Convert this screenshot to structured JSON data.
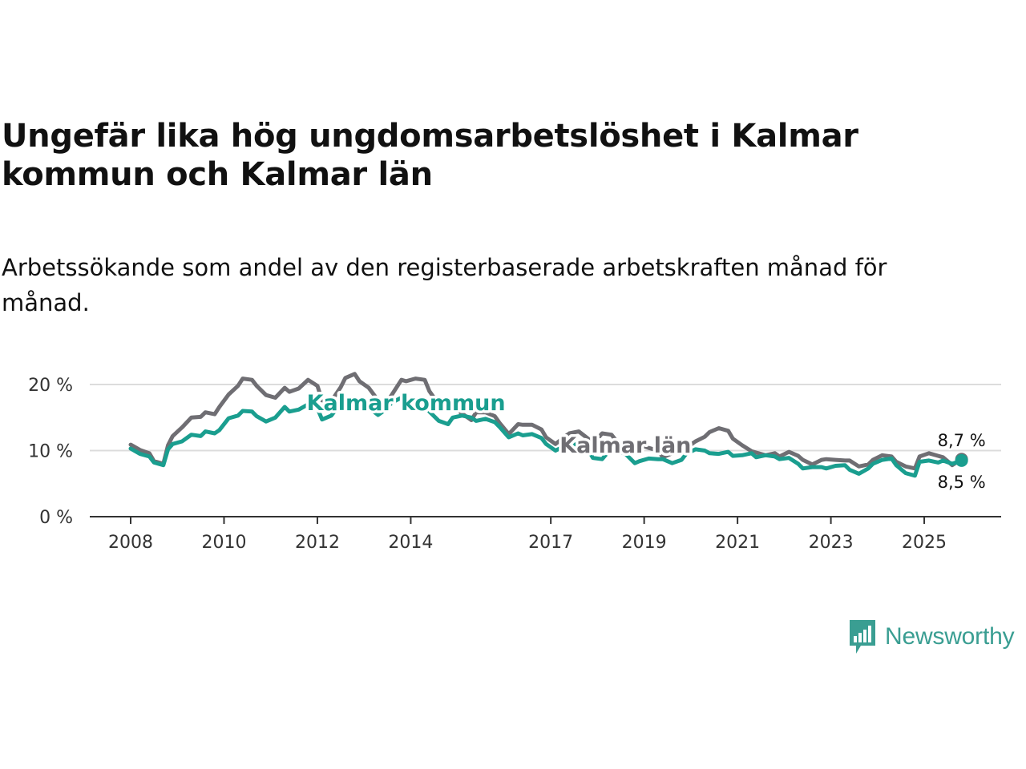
{
  "title": "Ungefär lika hög ungdomsarbetslöshet i Kalmar kommun och Kalmar län",
  "subtitle": "Arbetssökande som andel av den registerbaserade arbetskraften månad för månad.",
  "logo_text": "Newsworthy",
  "chart_data": {
    "type": "line",
    "y_tick_labels": [
      "0 %",
      "10 %",
      "20 %"
    ],
    "y_ticks": [
      0,
      10,
      20
    ],
    "ylim": [
      0,
      22
    ],
    "x_tick_labels": [
      "2008",
      "2010",
      "2012",
      "2014",
      "2017",
      "2019",
      "2021",
      "2023",
      "2025"
    ],
    "x_ticks": [
      2008,
      2010,
      2012,
      2014,
      2017,
      2019,
      2021,
      2023,
      2025
    ],
    "xlim": [
      2007.2,
      2026.5
    ],
    "grid": true,
    "colors": {
      "lan": "#6f6e73",
      "kommun": "#1a9e8f"
    },
    "series": [
      {
        "name": "Kalmar län",
        "key": "lan",
        "label": "Kalmar län",
        "label_position": [
          2018.6,
          10.8
        ],
        "end_label": "8,7 %",
        "points": [
          [
            2008.0,
            10.9
          ],
          [
            2008.2,
            10.1
          ],
          [
            2008.4,
            9.6
          ],
          [
            2008.5,
            8.4
          ],
          [
            2008.7,
            8.0
          ],
          [
            2008.8,
            10.8
          ],
          [
            2008.9,
            12.2
          ],
          [
            2009.1,
            13.5
          ],
          [
            2009.3,
            15.0
          ],
          [
            2009.5,
            15.1
          ],
          [
            2009.6,
            15.8
          ],
          [
            2009.8,
            15.5
          ],
          [
            2009.9,
            16.6
          ],
          [
            2010.1,
            18.5
          ],
          [
            2010.3,
            19.8
          ],
          [
            2010.4,
            20.9
          ],
          [
            2010.6,
            20.7
          ],
          [
            2010.7,
            19.8
          ],
          [
            2010.9,
            18.4
          ],
          [
            2011.1,
            18.0
          ],
          [
            2011.3,
            19.5
          ],
          [
            2011.4,
            18.9
          ],
          [
            2011.6,
            19.4
          ],
          [
            2011.8,
            20.7
          ],
          [
            2012.0,
            19.8
          ],
          [
            2012.1,
            17.6
          ],
          [
            2012.3,
            17.5
          ],
          [
            2012.5,
            19.6
          ],
          [
            2012.6,
            21.0
          ],
          [
            2012.8,
            21.6
          ],
          [
            2012.9,
            20.5
          ],
          [
            2013.1,
            19.5
          ],
          [
            2013.3,
            17.6
          ],
          [
            2013.4,
            16.5
          ],
          [
            2013.6,
            18.5
          ],
          [
            2013.8,
            20.7
          ],
          [
            2013.9,
            20.5
          ],
          [
            2014.1,
            20.9
          ],
          [
            2014.3,
            20.7
          ],
          [
            2014.4,
            19.0
          ],
          [
            2014.6,
            17.0
          ],
          [
            2014.8,
            17.8
          ],
          [
            2014.9,
            16.7
          ],
          [
            2015.1,
            15.6
          ],
          [
            2015.3,
            14.6
          ],
          [
            2015.4,
            15.8
          ],
          [
            2015.6,
            15.8
          ],
          [
            2015.8,
            15.2
          ],
          [
            2015.9,
            14.2
          ],
          [
            2016.1,
            12.5
          ],
          [
            2016.3,
            14.0
          ],
          [
            2016.4,
            13.9
          ],
          [
            2016.6,
            13.9
          ],
          [
            2016.8,
            13.2
          ],
          [
            2016.9,
            12.0
          ],
          [
            2017.1,
            11.0
          ],
          [
            2017.3,
            12.1
          ],
          [
            2017.4,
            12.6
          ],
          [
            2017.6,
            12.9
          ],
          [
            2017.8,
            11.8
          ],
          [
            2017.9,
            11.0
          ],
          [
            2018.1,
            12.6
          ],
          [
            2018.3,
            12.4
          ],
          [
            2018.4,
            11.5
          ],
          [
            2018.6,
            10.6
          ],
          [
            2018.8,
            10.3
          ],
          [
            2018.9,
            10.9
          ],
          [
            2019.1,
            10.4
          ],
          [
            2019.3,
            10.0
          ],
          [
            2019.4,
            9.0
          ],
          [
            2019.6,
            9.6
          ],
          [
            2019.8,
            9.9
          ],
          [
            2019.9,
            10.4
          ],
          [
            2020.1,
            11.4
          ],
          [
            2020.3,
            12.1
          ],
          [
            2020.4,
            12.8
          ],
          [
            2020.6,
            13.4
          ],
          [
            2020.8,
            13.0
          ],
          [
            2020.9,
            11.8
          ],
          [
            2021.1,
            10.8
          ],
          [
            2021.3,
            9.9
          ],
          [
            2021.4,
            9.7
          ],
          [
            2021.6,
            9.3
          ],
          [
            2021.8,
            9.6
          ],
          [
            2021.9,
            9.1
          ],
          [
            2022.1,
            9.8
          ],
          [
            2022.3,
            9.2
          ],
          [
            2022.4,
            8.6
          ],
          [
            2022.6,
            7.9
          ],
          [
            2022.8,
            8.6
          ],
          [
            2022.9,
            8.7
          ],
          [
            2023.1,
            8.6
          ],
          [
            2023.3,
            8.5
          ],
          [
            2023.4,
            8.5
          ],
          [
            2023.6,
            7.6
          ],
          [
            2023.8,
            7.9
          ],
          [
            2023.9,
            8.6
          ],
          [
            2024.1,
            9.3
          ],
          [
            2024.3,
            9.1
          ],
          [
            2024.4,
            8.3
          ],
          [
            2024.6,
            7.6
          ],
          [
            2024.8,
            7.3
          ],
          [
            2024.9,
            9.1
          ],
          [
            2025.1,
            9.6
          ],
          [
            2025.3,
            9.2
          ],
          [
            2025.4,
            9.0
          ],
          [
            2025.6,
            7.8
          ],
          [
            2025.8,
            8.7
          ]
        ]
      },
      {
        "name": "Kalmar kommun",
        "key": "kommun",
        "label": "Kalmar kommun",
        "label_position": [
          2013.9,
          17.2
        ],
        "end_label": "8,5 %",
        "points": [
          [
            2008.0,
            10.3
          ],
          [
            2008.2,
            9.5
          ],
          [
            2008.4,
            9.1
          ],
          [
            2008.5,
            8.2
          ],
          [
            2008.7,
            7.8
          ],
          [
            2008.8,
            10.2
          ],
          [
            2008.9,
            11.0
          ],
          [
            2009.1,
            11.4
          ],
          [
            2009.3,
            12.4
          ],
          [
            2009.5,
            12.2
          ],
          [
            2009.6,
            12.9
          ],
          [
            2009.8,
            12.6
          ],
          [
            2009.9,
            13.1
          ],
          [
            2010.1,
            14.9
          ],
          [
            2010.3,
            15.3
          ],
          [
            2010.4,
            16.0
          ],
          [
            2010.6,
            15.9
          ],
          [
            2010.7,
            15.2
          ],
          [
            2010.9,
            14.4
          ],
          [
            2011.1,
            15.0
          ],
          [
            2011.3,
            16.6
          ],
          [
            2011.4,
            15.9
          ],
          [
            2011.6,
            16.2
          ],
          [
            2011.8,
            17.0
          ],
          [
            2012.0,
            16.4
          ],
          [
            2012.1,
            14.7
          ],
          [
            2012.3,
            15.3
          ],
          [
            2012.5,
            17.2
          ],
          [
            2012.6,
            17.8
          ],
          [
            2012.8,
            17.9
          ],
          [
            2012.9,
            17.0
          ],
          [
            2013.1,
            16.5
          ],
          [
            2013.3,
            15.4
          ],
          [
            2013.4,
            15.9
          ],
          [
            2013.6,
            17.3
          ],
          [
            2013.8,
            18.0
          ],
          [
            2013.9,
            17.5
          ],
          [
            2014.1,
            17.2
          ],
          [
            2014.3,
            16.9
          ],
          [
            2014.4,
            15.9
          ],
          [
            2014.6,
            14.5
          ],
          [
            2014.8,
            14.0
          ],
          [
            2014.9,
            15.0
          ],
          [
            2015.1,
            15.3
          ],
          [
            2015.3,
            15.0
          ],
          [
            2015.4,
            14.5
          ],
          [
            2015.6,
            14.8
          ],
          [
            2015.8,
            14.3
          ],
          [
            2015.9,
            13.6
          ],
          [
            2016.1,
            12.0
          ],
          [
            2016.3,
            12.6
          ],
          [
            2016.4,
            12.3
          ],
          [
            2016.6,
            12.5
          ],
          [
            2016.8,
            11.9
          ],
          [
            2016.9,
            11.0
          ],
          [
            2017.1,
            10.0
          ],
          [
            2017.3,
            10.7
          ],
          [
            2017.4,
            11.0
          ],
          [
            2017.6,
            10.9
          ],
          [
            2017.8,
            10.2
          ],
          [
            2017.9,
            8.9
          ],
          [
            2018.1,
            8.7
          ],
          [
            2018.3,
            10.4
          ],
          [
            2018.4,
            10.0
          ],
          [
            2018.6,
            9.5
          ],
          [
            2018.8,
            8.1
          ],
          [
            2018.9,
            8.4
          ],
          [
            2019.1,
            8.8
          ],
          [
            2019.3,
            8.7
          ],
          [
            2019.4,
            8.7
          ],
          [
            2019.6,
            8.1
          ],
          [
            2019.8,
            8.6
          ],
          [
            2019.9,
            9.5
          ],
          [
            2020.1,
            10.2
          ],
          [
            2020.3,
            10.0
          ],
          [
            2020.4,
            9.6
          ],
          [
            2020.6,
            9.5
          ],
          [
            2020.8,
            9.8
          ],
          [
            2020.9,
            9.2
          ],
          [
            2021.1,
            9.3
          ],
          [
            2021.3,
            9.6
          ],
          [
            2021.4,
            9.0
          ],
          [
            2021.6,
            9.3
          ],
          [
            2021.8,
            9.1
          ],
          [
            2021.9,
            8.7
          ],
          [
            2022.1,
            8.9
          ],
          [
            2022.3,
            8.0
          ],
          [
            2022.4,
            7.3
          ],
          [
            2022.6,
            7.5
          ],
          [
            2022.8,
            7.5
          ],
          [
            2022.9,
            7.3
          ],
          [
            2023.1,
            7.7
          ],
          [
            2023.3,
            7.8
          ],
          [
            2023.4,
            7.1
          ],
          [
            2023.6,
            6.5
          ],
          [
            2023.8,
            7.3
          ],
          [
            2023.9,
            8.0
          ],
          [
            2024.1,
            8.6
          ],
          [
            2024.3,
            8.8
          ],
          [
            2024.4,
            7.8
          ],
          [
            2024.6,
            6.6
          ],
          [
            2024.8,
            6.2
          ],
          [
            2024.9,
            8.3
          ],
          [
            2025.1,
            8.5
          ],
          [
            2025.3,
            8.2
          ],
          [
            2025.4,
            8.5
          ],
          [
            2025.6,
            8.0
          ],
          [
            2025.8,
            8.5
          ]
        ]
      }
    ]
  }
}
